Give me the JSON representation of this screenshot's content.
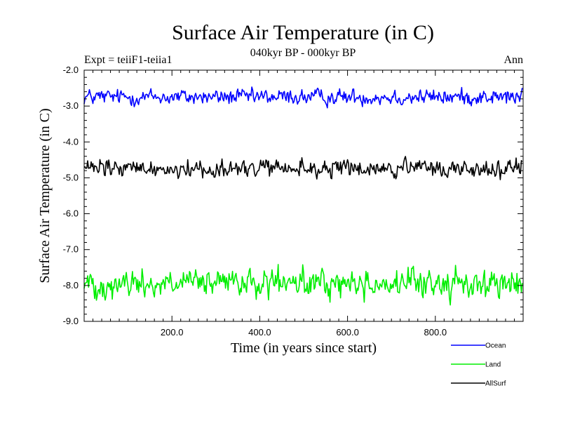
{
  "chart_data": {
    "type": "line",
    "title": "Surface Air Temperature (in C)",
    "subtitle": "040kyr BP - 000kyr BP",
    "experiment_label": "Expt = teiiF1-teiia1",
    "season_label": "Ann",
    "xlabel": "Time (in years since start)",
    "ylabel": "Surface Air Temperature (in C)",
    "xlim": [
      0,
      1000
    ],
    "ylim": [
      -9.0,
      -2.0
    ],
    "xticks": [
      200,
      400,
      600,
      800
    ],
    "xtick_labels": [
      "200.0",
      "400.0",
      "600.0",
      "800.0"
    ],
    "yticks": [
      -9,
      -8,
      -7,
      -6,
      -5,
      -4,
      -3,
      -2
    ],
    "ytick_labels": [
      "-9.0",
      "-8.0",
      "-7.0",
      "-6.0",
      "-5.0",
      "-4.0",
      "-3.0",
      "-2.0"
    ],
    "legend_placement": "below-right",
    "series": [
      {
        "name": "Ocean",
        "color": "#0000ff",
        "mean": -2.75,
        "noise": 0.13,
        "x": [
          0,
          999
        ]
      },
      {
        "name": "Land",
        "color": "#00ee00",
        "mean": -7.95,
        "noise": 0.23,
        "x": [
          0,
          999
        ]
      },
      {
        "name": "AllSurf",
        "color": "#000000",
        "mean": -4.75,
        "noise": 0.15,
        "x": [
          0,
          999
        ]
      }
    ]
  }
}
